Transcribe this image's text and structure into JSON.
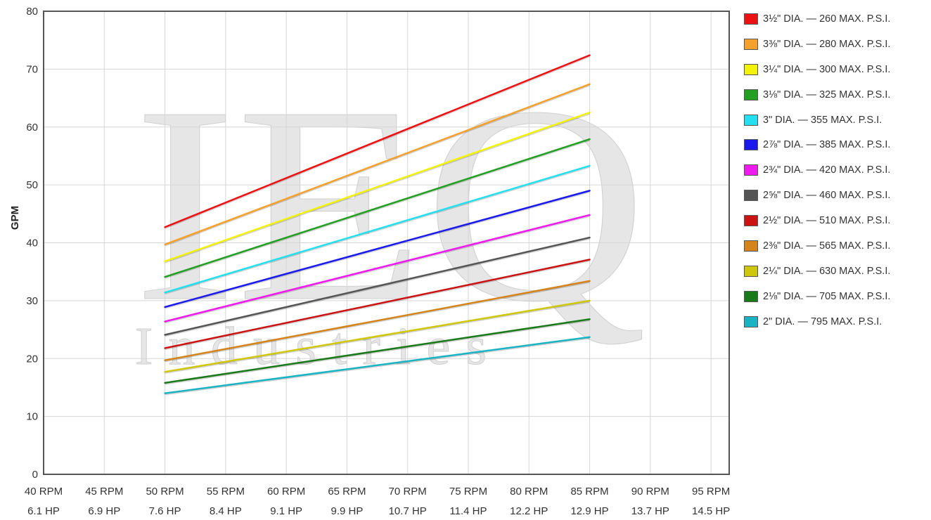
{
  "chart_data": {
    "type": "line",
    "ylabel": "GPM",
    "ylim": [
      0,
      80
    ],
    "yticks": [
      "0",
      "10",
      "20",
      "30",
      "40",
      "50",
      "60",
      "70",
      "80"
    ],
    "x": [
      40,
      45,
      50,
      55,
      60,
      65,
      70,
      75,
      80,
      85,
      90,
      95
    ],
    "xlim": [
      40,
      96.5
    ],
    "xtick_labels": [
      [
        "40 RPM",
        "6.1 HP"
      ],
      [
        "45 RPM",
        "6.9 HP"
      ],
      [
        "50 RPM",
        "7.6 HP"
      ],
      [
        "55 RPM",
        "8.4 HP"
      ],
      [
        "60 RPM",
        "9.1 HP"
      ],
      [
        "65 RPM",
        "9.9 HP"
      ],
      [
        "70 RPM",
        "10.7 HP"
      ],
      [
        "75 RPM",
        "11.4 HP"
      ],
      [
        "80 RPM",
        "12.2 HP"
      ],
      [
        "85 RPM",
        "12.9 HP"
      ],
      [
        "90 RPM",
        "13.7 HP"
      ],
      [
        "95 RPM",
        "14.5 HP"
      ]
    ],
    "grid": true,
    "legend_position": "right",
    "watermark": {
      "big": "IEQ",
      "small": "Industries"
    },
    "series": [
      {
        "name": "3½\" DIA. — 260 MAX. P.S.I.",
        "color": "#ee1111",
        "x": [
          50,
          85
        ],
        "y": [
          42.7,
          72.4
        ]
      },
      {
        "name": "3⅜\" DIA. — 280 MAX. P.S.I.",
        "color": "#f5a12b",
        "x": [
          50,
          85
        ],
        "y": [
          39.7,
          67.4
        ]
      },
      {
        "name": "3¼\" DIA. — 300 MAX. P.S.I.",
        "color": "#f3f30a",
        "x": [
          50,
          85
        ],
        "y": [
          36.8,
          62.5
        ]
      },
      {
        "name": "3⅛\" DIA. — 325 MAX. P.S.I.",
        "color": "#22a022",
        "x": [
          50,
          85
        ],
        "y": [
          34.1,
          57.9
        ]
      },
      {
        "name": "3\" DIA. — 355 MAX. P.S.I.",
        "color": "#22e0f0",
        "x": [
          50,
          85
        ],
        "y": [
          31.4,
          53.3
        ]
      },
      {
        "name": "2⅞\" DIA. — 385 MAX. P.S.I.",
        "color": "#1a1aee",
        "x": [
          50,
          85
        ],
        "y": [
          28.9,
          49.0
        ]
      },
      {
        "name": "2¾\" DIA. — 420 MAX. P.S.I.",
        "color": "#ee1aee",
        "x": [
          50,
          85
        ],
        "y": [
          26.4,
          44.8
        ]
      },
      {
        "name": "2⅝\" DIA. — 460 MAX. P.S.I.",
        "color": "#555555",
        "x": [
          50,
          85
        ],
        "y": [
          24.1,
          40.9
        ]
      },
      {
        "name": "2½\" DIA. — 510 MAX. P.S.I.",
        "color": "#cc1111",
        "x": [
          50,
          85
        ],
        "y": [
          21.8,
          37.1
        ]
      },
      {
        "name": "2⅜\" DIA. — 565 MAX. P.S.I.",
        "color": "#d4841a",
        "x": [
          50,
          85
        ],
        "y": [
          19.7,
          33.4
        ]
      },
      {
        "name": "2¼\" DIA. — 630 MAX. P.S.I.",
        "color": "#cfc80a",
        "x": [
          50,
          85
        ],
        "y": [
          17.7,
          30.0
        ]
      },
      {
        "name": "2⅛\" DIA. — 705 MAX. P.S.I.",
        "color": "#1a7a1a",
        "x": [
          50,
          85
        ],
        "y": [
          15.8,
          26.8
        ]
      },
      {
        "name": "2\" DIA. — 795 MAX. P.S.I.",
        "color": "#18b4c4",
        "x": [
          50,
          85
        ],
        "y": [
          14.0,
          23.7
        ]
      }
    ]
  }
}
